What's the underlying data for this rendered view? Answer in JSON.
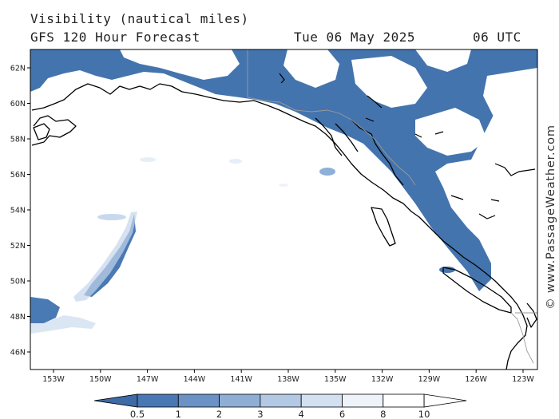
{
  "header": {
    "title": "Visibility (nautical miles)",
    "model": "GFS 120 Hour Forecast",
    "date": "Tue 06 May 2025",
    "time": "06 UTC"
  },
  "watermark": "© www.PassageWeather.com",
  "map": {
    "lat_labels": [
      "62N",
      "60N",
      "58N",
      "56N",
      "54N",
      "52N",
      "50N",
      "48N",
      "46N"
    ],
    "lon_labels": [
      "153W",
      "150W",
      "147W",
      "144W",
      "141W",
      "138W",
      "135W",
      "132W",
      "129W",
      "126W",
      "123W"
    ],
    "colors": {
      "fog_dark": "#3f6faa",
      "fog_mid": "#5d8bc2",
      "fog_light": "#a6c0e0",
      "fog_faint": "#dde8f5",
      "coast": "#000000",
      "border": "#9a9a9a"
    }
  },
  "colorbar": {
    "labels": [
      "0.5",
      "1",
      "2",
      "3",
      "4",
      "6",
      "8",
      "10"
    ],
    "colors": [
      "#3e6aa6",
      "#4a78b4",
      "#6a92c4",
      "#8eaed4",
      "#b2c8e3",
      "#d3e0f0",
      "#eef3fa",
      "#ffffff"
    ]
  }
}
